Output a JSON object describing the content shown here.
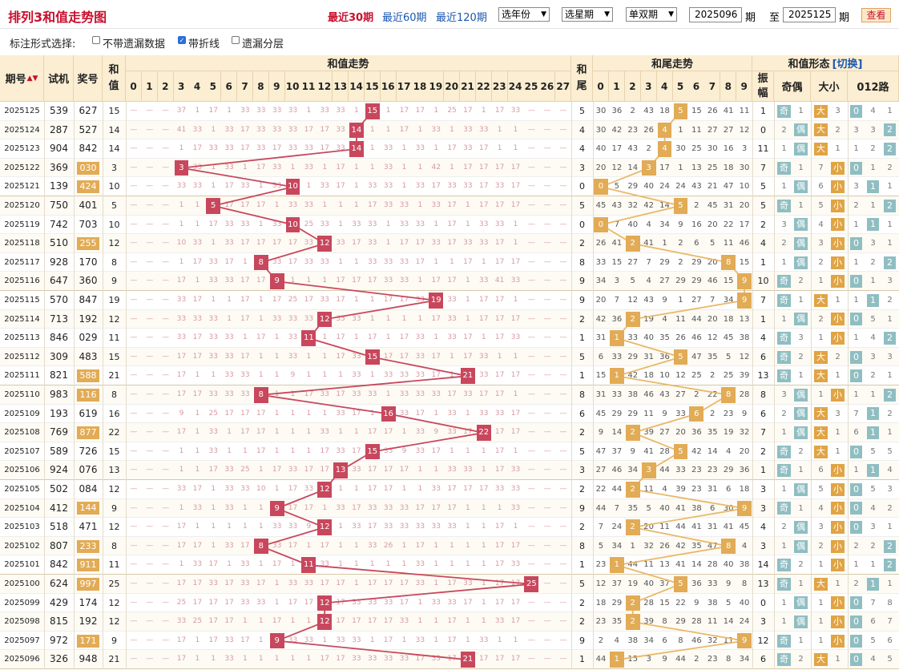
{
  "header": {
    "title": "排列3和值走势图",
    "period_links": [
      "最近30期",
      "最近60期",
      "最近120期"
    ],
    "active_link": 0,
    "selects": [
      "选年份",
      "选星期",
      "单双期"
    ],
    "start_issue": "2025096",
    "issue_unit": "期",
    "to_label": "至",
    "end_issue": "2025125",
    "query_button": "查看"
  },
  "options": {
    "label": "标注形式选择:",
    "checkboxes": [
      {
        "label": "不带遗漏数据",
        "checked": false
      },
      {
        "label": "带折线",
        "checked": true
      },
      {
        "label": "遗漏分层",
        "checked": false
      }
    ]
  },
  "table": {
    "col_issue": "期号",
    "col_trial": "试机",
    "col_draw": "奖号",
    "col_sum": "和值",
    "group_sum_trend": "和值走势",
    "col_tail": "和尾",
    "group_tail_trend": "和尾走势",
    "group_form": "和值形态",
    "switch_label": "[切换]",
    "col_amp": "振幅",
    "col_oe": "奇偶",
    "col_bs": "大小",
    "col_012": "012路",
    "sum_numbers": [
      "0",
      "1",
      "2",
      "3",
      "4",
      "5",
      "6",
      "7",
      "8",
      "9",
      "10",
      "11",
      "12",
      "13",
      "14",
      "15",
      "16",
      "17",
      "18",
      "19",
      "20",
      "21",
      "22",
      "23",
      "24",
      "25",
      "26",
      "27"
    ],
    "tail_numbers": [
      "0",
      "1",
      "2",
      "3",
      "4",
      "5",
      "6",
      "7",
      "8",
      "9"
    ],
    "labels": {
      "odd": "奇",
      "even": "偶",
      "big": "大",
      "small": "小"
    }
  },
  "rows": [
    {
      "issue": "2025125",
      "trial": "539",
      "draw": "627",
      "draw_hl": false,
      "sum": 15,
      "tail": 5,
      "amp": 1,
      "oe": "odd",
      "bs": "big",
      "r012": 0,
      "m_oe": 1,
      "m_bs": 3,
      "m012": [
        4,
        1
      ]
    },
    {
      "issue": "2025124",
      "trial": "287",
      "draw": "527",
      "draw_hl": false,
      "sum": 14,
      "tail": 4,
      "amp": 0,
      "oe": "even",
      "bs": "big",
      "r012": 2,
      "m_oe": 2,
      "m_bs": 2,
      "m012": [
        3,
        3
      ]
    },
    {
      "issue": "2025123",
      "trial": "904",
      "draw": "842",
      "draw_hl": false,
      "sum": 14,
      "tail": 4,
      "amp": 11,
      "oe": "even",
      "bs": "big",
      "r012": 2,
      "m_oe": 1,
      "m_bs": 1,
      "m012": [
        1,
        2
      ]
    },
    {
      "issue": "2025122",
      "trial": "369",
      "draw": "030",
      "draw_hl": true,
      "sum": 3,
      "tail": 3,
      "amp": 7,
      "oe": "odd",
      "bs": "small",
      "r012": 0,
      "m_oe": 1,
      "m_bs": 7,
      "m012": [
        1,
        2
      ]
    },
    {
      "issue": "2025121",
      "trial": "139",
      "draw": "424",
      "draw_hl": true,
      "sum": 10,
      "tail": 0,
      "amp": 5,
      "oe": "even",
      "bs": "small",
      "r012": 1,
      "m_oe": 1,
      "m_bs": 6,
      "m012": [
        3,
        1
      ]
    },
    {
      "issue": "2025120",
      "trial": "750",
      "draw": "401",
      "draw_hl": false,
      "sum": 5,
      "tail": 5,
      "amp": 5,
      "oe": "odd",
      "bs": "small",
      "r012": 2,
      "m_oe": 1,
      "m_bs": 5,
      "m012": [
        2,
        1
      ]
    },
    {
      "issue": "2025119",
      "trial": "742",
      "draw": "703",
      "draw_hl": false,
      "sum": 10,
      "tail": 0,
      "amp": 2,
      "oe": "even",
      "bs": "small",
      "r012": 1,
      "m_oe": 3,
      "m_bs": 4,
      "m012": [
        1,
        1
      ]
    },
    {
      "issue": "2025118",
      "trial": "510",
      "draw": "255",
      "draw_hl": true,
      "sum": 12,
      "tail": 2,
      "amp": 4,
      "oe": "even",
      "bs": "small",
      "r012": 0,
      "m_oe": 2,
      "m_bs": 3,
      "m012": [
        3,
        1
      ]
    },
    {
      "issue": "2025117",
      "trial": "928",
      "draw": "170",
      "draw_hl": false,
      "sum": 8,
      "tail": 8,
      "amp": 1,
      "oe": "even",
      "bs": "small",
      "r012": 2,
      "m_oe": 1,
      "m_bs": 2,
      "m012": [
        1,
        2
      ]
    },
    {
      "issue": "2025116",
      "trial": "647",
      "draw": "360",
      "draw_hl": false,
      "sum": 9,
      "tail": 9,
      "amp": 10,
      "oe": "odd",
      "bs": "small",
      "r012": 0,
      "m_oe": 2,
      "m_bs": 1,
      "m012": [
        1,
        3
      ]
    },
    {
      "issue": "2025115",
      "trial": "570",
      "draw": "847",
      "draw_hl": false,
      "sum": 19,
      "tail": 9,
      "amp": 7,
      "oe": "odd",
      "bs": "big",
      "r012": 1,
      "m_oe": 1,
      "m_bs": 1,
      "m012": [
        1,
        2
      ]
    },
    {
      "issue": "2025114",
      "trial": "713",
      "draw": "192",
      "draw_hl": false,
      "sum": 12,
      "tail": 2,
      "amp": 1,
      "oe": "even",
      "bs": "small",
      "r012": 0,
      "m_oe": 1,
      "m_bs": 2,
      "m012": [
        5,
        1
      ]
    },
    {
      "issue": "2025113",
      "trial": "846",
      "draw": "029",
      "draw_hl": false,
      "sum": 11,
      "tail": 1,
      "amp": 4,
      "oe": "odd",
      "bs": "small",
      "r012": 2,
      "m_oe": 3,
      "m_bs": 1,
      "m012": [
        1,
        4
      ]
    },
    {
      "issue": "2025112",
      "trial": "309",
      "draw": "483",
      "draw_hl": false,
      "sum": 15,
      "tail": 5,
      "amp": 6,
      "oe": "odd",
      "bs": "big",
      "r012": 0,
      "m_oe": 2,
      "m_bs": 2,
      "m012": [
        3,
        3
      ]
    },
    {
      "issue": "2025111",
      "trial": "821",
      "draw": "588",
      "draw_hl": true,
      "sum": 21,
      "tail": 1,
      "amp": 13,
      "oe": "odd",
      "bs": "big",
      "r012": 0,
      "m_oe": 1,
      "m_bs": 1,
      "m012": [
        2,
        1
      ]
    },
    {
      "issue": "2025110",
      "trial": "983",
      "draw": "116",
      "draw_hl": true,
      "sum": 8,
      "tail": 8,
      "amp": 8,
      "oe": "even",
      "bs": "small",
      "r012": 2,
      "m_oe": 3,
      "m_bs": 1,
      "m012": [
        1,
        1
      ]
    },
    {
      "issue": "2025109",
      "trial": "193",
      "draw": "619",
      "draw_hl": false,
      "sum": 16,
      "tail": 6,
      "amp": 6,
      "oe": "even",
      "bs": "big",
      "r012": 1,
      "m_oe": 2,
      "m_bs": 3,
      "m012": [
        7,
        2
      ]
    },
    {
      "issue": "2025108",
      "trial": "769",
      "draw": "877",
      "draw_hl": true,
      "sum": 22,
      "tail": 2,
      "amp": 7,
      "oe": "even",
      "bs": "big",
      "r012": 1,
      "m_oe": 1,
      "m_bs": 1,
      "m012": [
        6,
        1
      ]
    },
    {
      "issue": "2025107",
      "trial": "589",
      "draw": "726",
      "draw_hl": false,
      "sum": 15,
      "tail": 5,
      "amp": 2,
      "oe": "odd",
      "bs": "big",
      "r012": 0,
      "m_oe": 2,
      "m_bs": 1,
      "m012": [
        5,
        5
      ]
    },
    {
      "issue": "2025106",
      "trial": "924",
      "draw": "076",
      "draw_hl": false,
      "sum": 13,
      "tail": 3,
      "amp": 1,
      "oe": "odd",
      "bs": "small",
      "r012": 1,
      "m_oe": 1,
      "m_bs": 6,
      "m012": [
        1,
        4
      ]
    },
    {
      "issue": "2025105",
      "trial": "502",
      "draw": "084",
      "draw_hl": false,
      "sum": 12,
      "tail": 2,
      "amp": 3,
      "oe": "even",
      "bs": "small",
      "r012": 0,
      "m_oe": 1,
      "m_bs": 5,
      "m012": [
        5,
        3
      ]
    },
    {
      "issue": "2025104",
      "trial": "412",
      "draw": "144",
      "draw_hl": true,
      "sum": 9,
      "tail": 9,
      "amp": 3,
      "oe": "odd",
      "bs": "small",
      "r012": 0,
      "m_oe": 1,
      "m_bs": 4,
      "m012": [
        4,
        2
      ]
    },
    {
      "issue": "2025103",
      "trial": "518",
      "draw": "471",
      "draw_hl": false,
      "sum": 12,
      "tail": 2,
      "amp": 4,
      "oe": "even",
      "bs": "small",
      "r012": 0,
      "m_oe": 2,
      "m_bs": 3,
      "m012": [
        3,
        1
      ]
    },
    {
      "issue": "2025102",
      "trial": "807",
      "draw": "233",
      "draw_hl": true,
      "sum": 8,
      "tail": 8,
      "amp": 3,
      "oe": "even",
      "bs": "small",
      "r012": 2,
      "m_oe": 1,
      "m_bs": 2,
      "m012": [
        2,
        2
      ]
    },
    {
      "issue": "2025101",
      "trial": "842",
      "draw": "911",
      "draw_hl": true,
      "sum": 11,
      "tail": 1,
      "amp": 14,
      "oe": "odd",
      "bs": "small",
      "r012": 2,
      "m_oe": 2,
      "m_bs": 1,
      "m012": [
        1,
        1
      ]
    },
    {
      "issue": "2025100",
      "trial": "624",
      "draw": "997",
      "draw_hl": true,
      "sum": 25,
      "tail": 5,
      "amp": 13,
      "oe": "odd",
      "bs": "big",
      "r012": 1,
      "m_oe": 1,
      "m_bs": 1,
      "m012": [
        2,
        1
      ]
    },
    {
      "issue": "2025099",
      "trial": "429",
      "draw": "174",
      "draw_hl": false,
      "sum": 12,
      "tail": 2,
      "amp": 0,
      "oe": "even",
      "bs": "small",
      "r012": 0,
      "m_oe": 1,
      "m_bs": 1,
      "m012": [
        7,
        8
      ]
    },
    {
      "issue": "2025098",
      "trial": "815",
      "draw": "192",
      "draw_hl": false,
      "sum": 12,
      "tail": 2,
      "amp": 3,
      "oe": "even",
      "bs": "small",
      "r012": 0,
      "m_oe": 1,
      "m_bs": 1,
      "m012": [
        6,
        7
      ]
    },
    {
      "issue": "2025097",
      "trial": "972",
      "draw": "171",
      "draw_hl": true,
      "sum": 9,
      "tail": 9,
      "amp": 12,
      "oe": "odd",
      "bs": "small",
      "r012": 0,
      "m_oe": 1,
      "m_bs": 1,
      "m012": [
        5,
        6
      ]
    },
    {
      "issue": "2025096",
      "trial": "326",
      "draw": "948",
      "draw_hl": false,
      "sum": 21,
      "tail": 1,
      "amp": 6,
      "oe": "odd",
      "bs": "big",
      "r012": 0,
      "m_oe": 2,
      "m_bs": 1,
      "m012": [
        4,
        5
      ]
    }
  ],
  "colors": {
    "sum_line": "#c8475d",
    "sum_ball": "#c8475d",
    "tail_line": "#e9b86a",
    "tail_ball": "#e2ab55",
    "teal_chip": "#8fbec2",
    "orange_chip": "#e0a445",
    "draw_highlight": "#e2ab55",
    "header_bg": "#fbeed2",
    "miss_text": "#d79aa2",
    "link": "#1a56b0",
    "title": "#c8102e"
  }
}
